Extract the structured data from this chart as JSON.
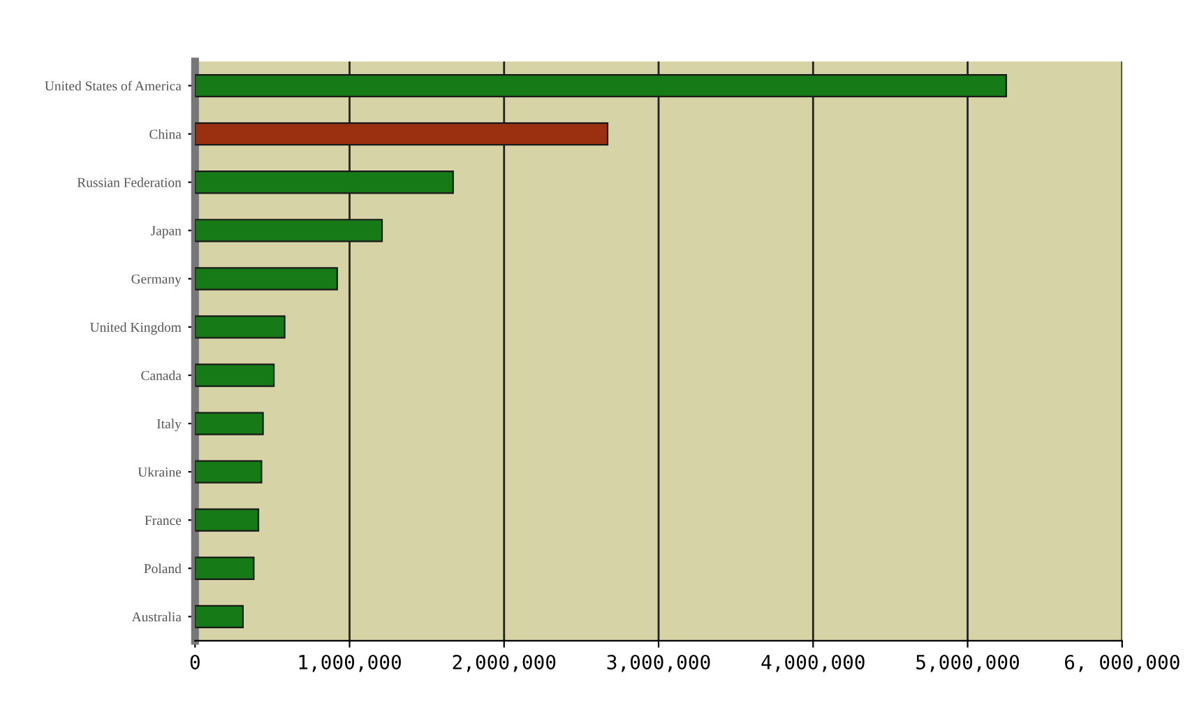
{
  "chart_data": {
    "type": "bar",
    "orientation": "horizontal",
    "categories": [
      "United States of America",
      "China",
      "Russian Federation",
      "Japan",
      "Germany",
      "United Kingdom",
      "Canada",
      "Italy",
      "Ukraine",
      "France",
      "Poland",
      "Australia"
    ],
    "values": [
      5250000,
      2670000,
      1670000,
      1210000,
      920000,
      580000,
      510000,
      440000,
      430000,
      410000,
      380000,
      310000
    ],
    "colors": [
      "#167a16",
      "#9a3010",
      "#167a16",
      "#167a16",
      "#167a16",
      "#167a16",
      "#167a16",
      "#167a16",
      "#167a16",
      "#167a16",
      "#167a16",
      "#167a16"
    ],
    "xlim": [
      0,
      6000000
    ],
    "xticks": [
      0,
      {
        "value": 1000000,
        "label": "1,000,000"
      },
      {
        "value": 2000000,
        "label": "2,000,000"
      },
      {
        "value": 3000000,
        "label": "3,000,000"
      },
      {
        "value": 4000000,
        "label": "4,000,000"
      },
      {
        "value": 5000000,
        "label": "5,000,000"
      },
      {
        "value": 6000000,
        "label": "6, 000,000"
      }
    ],
    "grid": "x"
  }
}
